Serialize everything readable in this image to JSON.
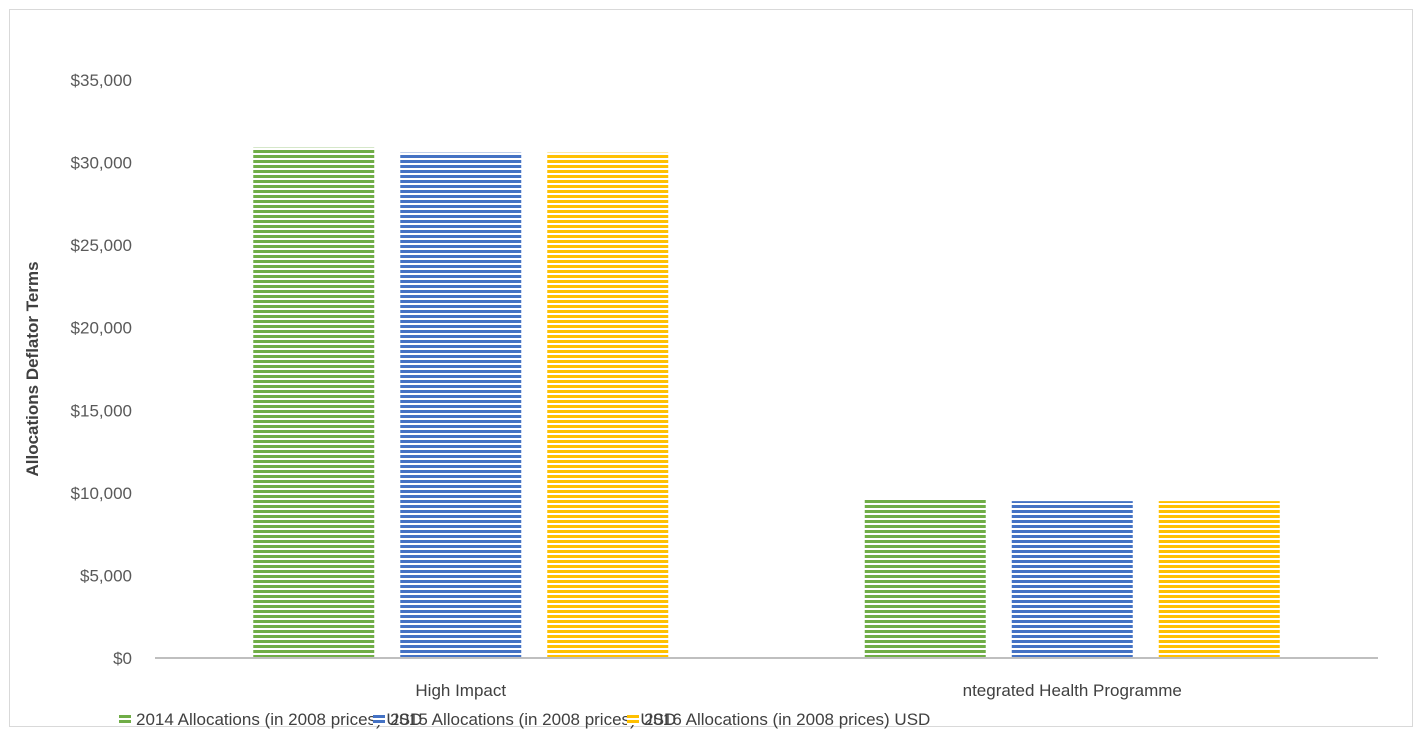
{
  "chart_data": {
    "type": "bar",
    "title": "",
    "xlabel": "",
    "ylabel": "Allocations Deflator Terms",
    "categories": [
      "High Impact",
      "ntegrated Health Programme"
    ],
    "series": [
      {
        "name": "2014 Allocations (in 2008 prices) USD",
        "values": [
          30900,
          9600
        ],
        "color": "#70ad47"
      },
      {
        "name": "2015 Allocations (in 2008 prices) USD",
        "values": [
          30600,
          9500
        ],
        "color": "#4472c4"
      },
      {
        "name": "2016 Allocations (in 2008 prices) USD",
        "values": [
          30600,
          9500
        ],
        "color": "#ffc000"
      }
    ],
    "ylim": [
      0,
      35000
    ],
    "yticks": [
      0,
      5000,
      10000,
      15000,
      20000,
      25000,
      30000,
      35000
    ],
    "ytick_labels": [
      "$0",
      "$5,000",
      "$10,000",
      "$15,000",
      "$20,000",
      "$25,000",
      "$30,000",
      "$35,000"
    ],
    "grid": false,
    "legend_position": "bottom",
    "bar_pattern": "horizontal-stripes"
  }
}
